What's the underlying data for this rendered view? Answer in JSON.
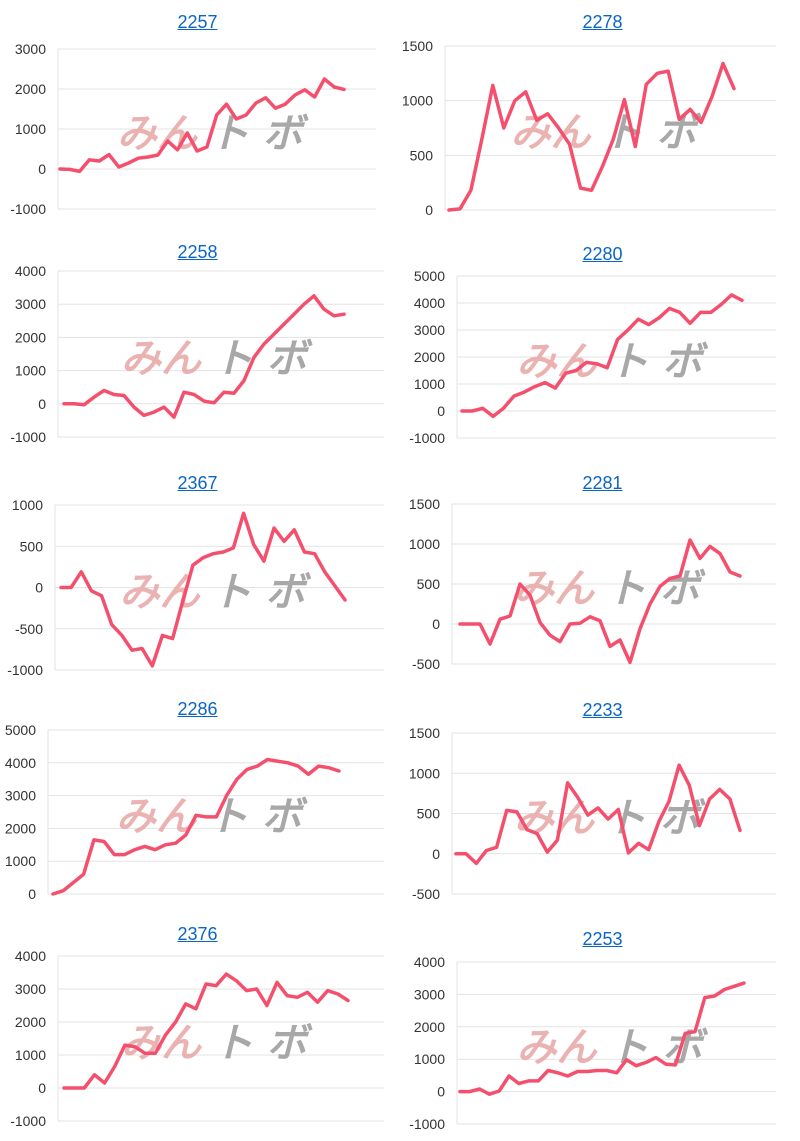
{
  "colors": {
    "line": "#f4506e",
    "grid": "#e3e3e3",
    "link": "#0b66c3"
  },
  "watermark": {
    "part_a": "みん",
    "part_b": "ト ボ"
  },
  "chart_data": [
    {
      "type": "line",
      "title": "2257",
      "ylim": [
        -1000,
        3000
      ],
      "yticks": [
        -1000,
        0,
        1000,
        2000,
        3000
      ],
      "grid": true,
      "series": [
        {
          "values": [
            0,
            -10,
            -60,
            230,
            200,
            360,
            50,
            150,
            270,
            300,
            350,
            700,
            480,
            900,
            450,
            550,
            1350,
            1620,
            1250,
            1350,
            1650,
            1780,
            1520,
            1620,
            1850,
            1980,
            1800,
            2250,
            2050,
            1990
          ]
        }
      ]
    },
    {
      "type": "line",
      "title": "2278",
      "ylim": [
        0,
        1500
      ],
      "yticks": [
        0,
        500,
        1000,
        1500
      ],
      "grid": true,
      "series": [
        {
          "values": [
            0,
            10,
            180,
            650,
            1140,
            750,
            1000,
            1080,
            820,
            880,
            750,
            600,
            200,
            180,
            400,
            650,
            1010,
            580,
            1150,
            1250,
            1270,
            830,
            920,
            800,
            1040,
            1340,
            1110
          ]
        }
      ]
    },
    {
      "type": "line",
      "title": "2258",
      "ylim": [
        -1000,
        4000
      ],
      "yticks": [
        -1000,
        0,
        1000,
        2000,
        3000,
        4000
      ],
      "grid": true,
      "series": [
        {
          "values": [
            0,
            0,
            -30,
            200,
            400,
            280,
            250,
            -100,
            -350,
            -250,
            -100,
            -400,
            350,
            280,
            80,
            30,
            350,
            320,
            700,
            1400,
            1800,
            2100,
            2400,
            2700,
            3000,
            3250,
            2850,
            2650,
            2700
          ]
        }
      ]
    },
    {
      "type": "line",
      "title": "2280",
      "ylim": [
        -1000,
        5000
      ],
      "yticks": [
        -1000,
        0,
        1000,
        2000,
        3000,
        4000,
        5000
      ],
      "grid": true,
      "series": [
        {
          "values": [
            0,
            0,
            100,
            -200,
            100,
            550,
            700,
            900,
            1050,
            850,
            1400,
            1500,
            1800,
            1750,
            1600,
            2650,
            3000,
            3400,
            3200,
            3450,
            3800,
            3650,
            3250,
            3650,
            3650,
            3950,
            4300,
            4100
          ]
        }
      ]
    },
    {
      "type": "line",
      "title": "2367",
      "ylim": [
        -1000,
        1000
      ],
      "yticks": [
        -1000,
        -500,
        0,
        500,
        1000
      ],
      "grid": true,
      "series": [
        {
          "values": [
            0,
            0,
            190,
            -40,
            -100,
            -450,
            -580,
            -760,
            -740,
            -950,
            -580,
            -620,
            -170,
            270,
            360,
            410,
            430,
            480,
            900,
            520,
            320,
            720,
            560,
            700,
            430,
            410,
            190,
            20,
            -150
          ]
        }
      ]
    },
    {
      "type": "line",
      "title": "2281",
      "ylim": [
        -500,
        1500
      ],
      "yticks": [
        -500,
        0,
        500,
        1000,
        1500
      ],
      "grid": true,
      "series": [
        {
          "values": [
            0,
            0,
            0,
            -250,
            60,
            100,
            500,
            360,
            20,
            -140,
            -220,
            0,
            10,
            90,
            40,
            -280,
            -200,
            -480,
            -60,
            250,
            470,
            570,
            600,
            1050,
            820,
            970,
            880,
            650,
            600
          ]
        }
      ]
    },
    {
      "type": "line",
      "title": "2286",
      "ylim": [
        0,
        5000
      ],
      "yticks": [
        0,
        1000,
        2000,
        3000,
        4000,
        5000
      ],
      "grid": true,
      "series": [
        {
          "values": [
            0,
            100,
            350,
            600,
            1650,
            1600,
            1200,
            1200,
            1350,
            1450,
            1350,
            1500,
            1550,
            1800,
            2400,
            2350,
            2350,
            3000,
            3500,
            3800,
            3900,
            4100,
            4050,
            4000,
            3900,
            3650,
            3900,
            3850,
            3750
          ]
        }
      ]
    },
    {
      "type": "line",
      "title": "2233",
      "ylim": [
        -500,
        1500
      ],
      "yticks": [
        -500,
        0,
        500,
        1000,
        1500
      ],
      "grid": true,
      "series": [
        {
          "values": [
            0,
            0,
            -120,
            40,
            80,
            540,
            520,
            300,
            250,
            20,
            170,
            880,
            700,
            480,
            570,
            430,
            550,
            10,
            130,
            50,
            400,
            650,
            1100,
            850,
            350,
            680,
            800,
            680,
            290
          ]
        }
      ]
    },
    {
      "type": "line",
      "title": "2376",
      "ylim": [
        -1000,
        4000
      ],
      "yticks": [
        -1000,
        0,
        1000,
        2000,
        3000,
        4000
      ],
      "grid": true,
      "series": [
        {
          "values": [
            0,
            0,
            0,
            400,
            150,
            650,
            1300,
            1250,
            1050,
            1050,
            1600,
            2000,
            2550,
            2400,
            3150,
            3100,
            3450,
            3250,
            2950,
            3000,
            2500,
            3200,
            2800,
            2750,
            2900,
            2600,
            2950,
            2850,
            2650
          ]
        }
      ]
    },
    {
      "type": "line",
      "title": "2253",
      "ylim": [
        -1000,
        4000
      ],
      "yticks": [
        -1000,
        0,
        1000,
        2000,
        3000,
        4000
      ],
      "grid": true,
      "series": [
        {
          "values": [
            0,
            0,
            80,
            -80,
            20,
            480,
            250,
            330,
            330,
            650,
            580,
            480,
            620,
            620,
            650,
            650,
            580,
            980,
            800,
            900,
            1050,
            850,
            820,
            1800,
            1850,
            2900,
            2950,
            3150,
            3250,
            3350
          ]
        }
      ]
    }
  ]
}
